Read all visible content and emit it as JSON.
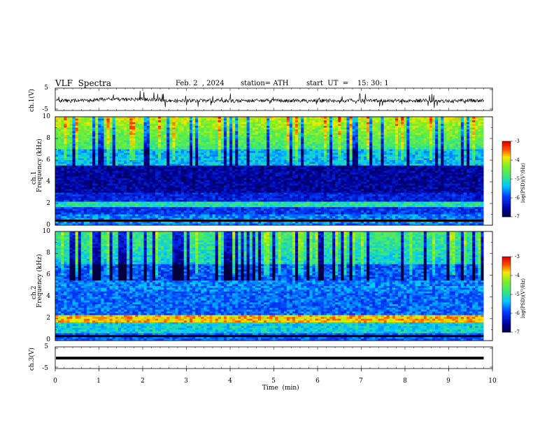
{
  "header": {
    "title": "VLF  Spectra",
    "date": "Feb. 2  , 2024",
    "station": "station= ATH",
    "start": "start  UT  =    15: 30: 1"
  },
  "chart_data": [
    {
      "type": "line",
      "panel": "ch1-waveform",
      "ylabel": "ch.1(V)",
      "ylim": [
        -5,
        5
      ],
      "yticks": [
        "5",
        "-5"
      ],
      "xlim": [
        0,
        9.8
      ]
    },
    {
      "type": "heatmap",
      "panel": "ch1-spectrogram",
      "ylabel": "ch.1\nFrequency  (kHz)",
      "ylabel_channel": "ch.1",
      "ylabel_freq": "Frequency  (kHz)",
      "ylim": [
        0,
        10
      ],
      "yticks": [
        "10",
        "8",
        "6",
        "4",
        "2",
        "0"
      ],
      "colorbar": {
        "label": "log(PSD)(V²/Hz)",
        "range": [
          -7,
          -3
        ],
        "ticks": [
          "-3",
          "-4",
          "-5",
          "-6",
          "-7"
        ]
      }
    },
    {
      "type": "heatmap",
      "panel": "ch2-spectrogram",
      "ylabel": "ch.2\nFrequency  (kHz)",
      "ylabel_channel": "ch.2",
      "ylabel_freq": "Frequency  (kHz)",
      "ylim": [
        0,
        10
      ],
      "yticks": [
        "10",
        "8",
        "6",
        "4",
        "2",
        "0"
      ],
      "colorbar": {
        "label": "log(PSD)(V²/Hz)",
        "range": [
          -7,
          -3
        ],
        "ticks": [
          "-3",
          "-4",
          "-5",
          "-6",
          "-7"
        ]
      }
    },
    {
      "type": "line",
      "panel": "ch3-waveform",
      "ylabel": "ch.3(V)",
      "ylim": [
        -5,
        5
      ],
      "yticks": [
        "5",
        "-5"
      ],
      "xlim": [
        0,
        9.8
      ]
    }
  ],
  "xaxis": {
    "label": "Time  (min)",
    "xlim": [
      0,
      10
    ],
    "ticks": [
      "0",
      "1",
      "2",
      "3",
      "4",
      "5",
      "6",
      "7",
      "8",
      "9",
      "10"
    ]
  },
  "colors": {
    "low": "#000080",
    "mid": "#00c8ff",
    "green": "#40e040",
    "high": "#ff2000",
    "top": "#ffffff"
  }
}
